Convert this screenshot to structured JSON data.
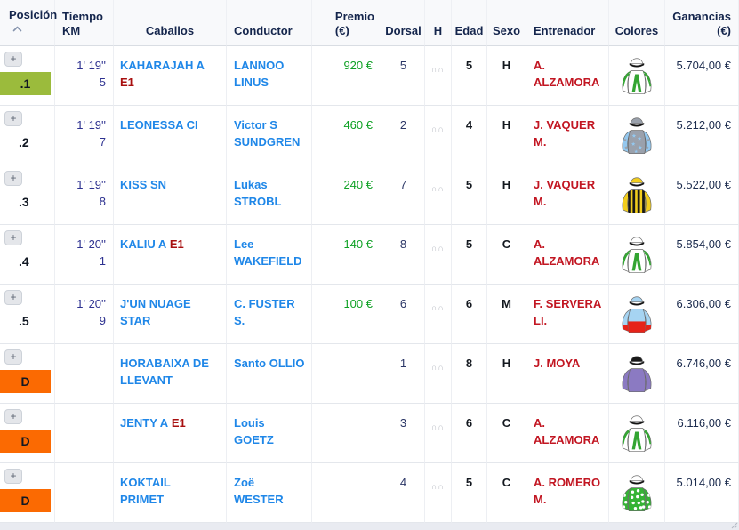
{
  "colors": {
    "rank1_badge": "#9bbb3c",
    "dq_badge": "#fb6a02",
    "tag_red": "#a80f0f",
    "link_blue": "#1f87e8",
    "trainer_red": "#c21622",
    "prize_green": "#0fa125",
    "time_navy": "#2d3190",
    "header_navy": "#14254c"
  },
  "icons": {
    "plus_label": "+",
    "sort_icon": "chevron-up",
    "horseshoe_glyph": "∩∩"
  },
  "header": {
    "position": "Posición",
    "time": "Tiempo\nKM",
    "horse": "Caballos",
    "driver": "Conductor",
    "prize": "Premio\n(€)",
    "number": "Dorsal",
    "h": "H",
    "age": "Edad",
    "sex": "Sexo",
    "trainer": "Entrenador",
    "colors": "Colores",
    "earnings": "Ganancias\n(€)"
  },
  "table": {
    "rows": [
      {
        "position": ".1",
        "time": "1' 19'' 5",
        "horse": "KAHARAJAH A",
        "tag": "E1",
        "driver": "LANNOO LINUS",
        "premio": "920 €",
        "dorsal": "5",
        "edad": "5",
        "sexo": "H",
        "trainer": "A. ALZAMORA",
        "ganancias": "5.704,00 €",
        "silk": {
          "pattern": "chevron",
          "body": "#ffffff",
          "sleeve": "#ffffff",
          "accent": "#33a532",
          "cap": "#ffffff",
          "peak": "#111111"
        }
      },
      {
        "position": ".2",
        "time": "1' 19'' 7",
        "horse": "LEONESSA CI",
        "tag": "",
        "driver": "Victor S SUNDGREN",
        "premio": "460 €",
        "dorsal": "2",
        "edad": "4",
        "sexo": "H",
        "trainer": "J. VAQUER M.",
        "ganancias": "5.212,00 €",
        "silk": {
          "pattern": "stars",
          "body": "#9aa1ac",
          "sleeve": "#94c8ef",
          "accent": "#94c8ef",
          "cap": "#9aa1ac",
          "peak": "#111111"
        }
      },
      {
        "position": ".3",
        "time": "1' 19'' 8",
        "horse": "KISS SN",
        "tag": "",
        "driver": "Lukas STROBL",
        "premio": "240 €",
        "dorsal": "7",
        "edad": "5",
        "sexo": "H",
        "trainer": "J. VAQUER M.",
        "ganancias": "5.522,00 €",
        "silk": {
          "pattern": "stripes",
          "body": "#f2cd1d",
          "sleeve": "#f2cd1d",
          "accent": "#181818",
          "cap": "#f2cd1d",
          "peak": "#111111"
        }
      },
      {
        "position": ".4",
        "time": "1' 20'' 1",
        "horse": "KALIU A",
        "tag": "E1",
        "driver": "Lee WAKEFIELD",
        "premio": "140 €",
        "dorsal": "8",
        "edad": "5",
        "sexo": "C",
        "trainer": "A. ALZAMORA",
        "ganancias": "5.854,00 €",
        "silk": {
          "pattern": "chevron",
          "body": "#ffffff",
          "sleeve": "#ffffff",
          "accent": "#33a532",
          "cap": "#ffffff",
          "peak": "#111111"
        }
      },
      {
        "position": ".5",
        "time": "1' 20'' 9",
        "horse": "J'UN NUAGE STAR",
        "tag": "",
        "driver": "C. FUSTER S.",
        "premio": "100 €",
        "dorsal": "6",
        "edad": "6",
        "sexo": "M",
        "trainer": "F. SERVERA LI.",
        "ganancias": "6.306,00 €",
        "silk": {
          "pattern": "halved",
          "body": "#a6d4f2",
          "sleeve": "#a6d4f2",
          "accent": "#e62319",
          "cap": "#a6d4f2",
          "peak": "#111111"
        }
      },
      {
        "position": "D",
        "time": "",
        "horse": "HORABAIXA DE LLEVANT",
        "tag": "",
        "driver": "Santo OLLIO",
        "premio": "",
        "dorsal": "1",
        "edad": "8",
        "sexo": "H",
        "trainer": "J. MOYA",
        "ganancias": "6.746,00 €",
        "silk": {
          "pattern": "solid",
          "body": "#8b7ac2",
          "sleeve": "#8b7ac2",
          "accent": "#8b7ac2",
          "cap": "#1a1a1a",
          "peak": "#1a1a1a"
        }
      },
      {
        "position": "D",
        "time": "",
        "horse": "JENTY A",
        "tag": "E1",
        "driver": "Louis GOETZ",
        "premio": "",
        "dorsal": "3",
        "edad": "6",
        "sexo": "C",
        "trainer": "A. ALZAMORA",
        "ganancias": "6.116,00 €",
        "silk": {
          "pattern": "chevron",
          "body": "#ffffff",
          "sleeve": "#ffffff",
          "accent": "#33a532",
          "cap": "#ffffff",
          "peak": "#111111"
        }
      },
      {
        "position": "D",
        "time": "",
        "horse": "KOKTAIL PRIMET",
        "tag": "",
        "driver": "Zoë WESTER",
        "premio": "",
        "dorsal": "4",
        "edad": "5",
        "sexo": "C",
        "trainer": "A. ROMERO M.",
        "ganancias": "5.014,00 €",
        "silk": {
          "pattern": "spots",
          "body": "#35b335",
          "sleeve": "#35b335",
          "accent": "#ffffff",
          "cap": "#ffffff",
          "peak": "#111111"
        }
      }
    ]
  }
}
